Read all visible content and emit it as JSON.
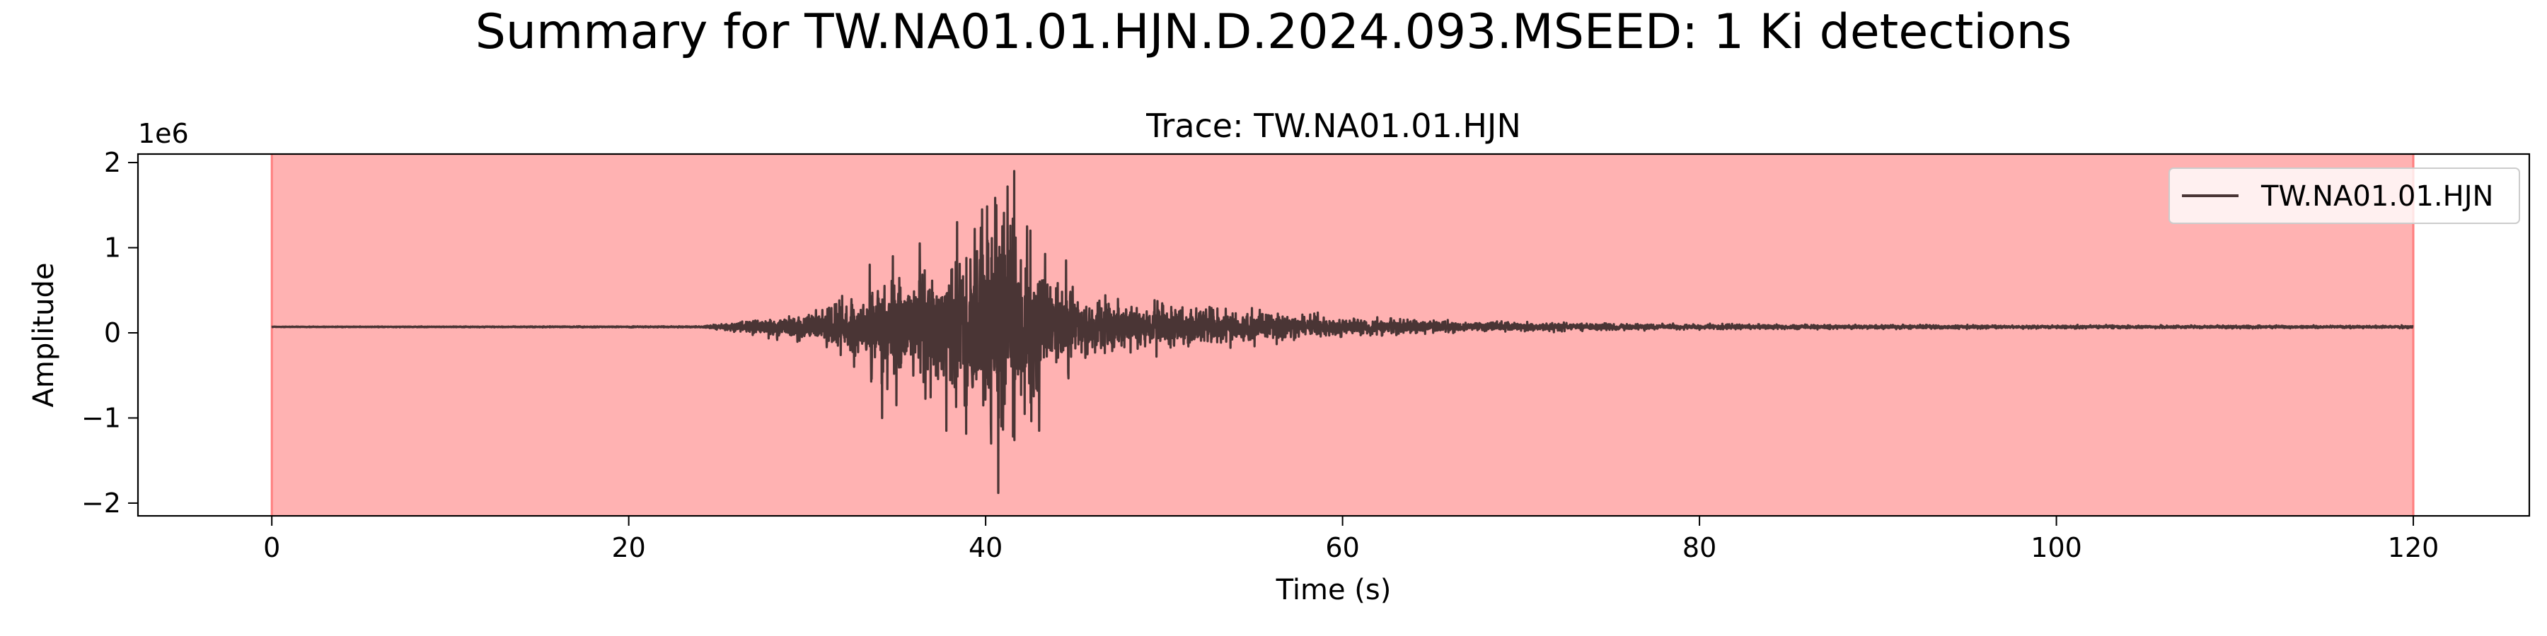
{
  "chart_data": {
    "type": "line",
    "title": "Summary for TW.NA01.01.HJN.D.2024.093.MSEED: 1 Ki detections",
    "subtitle": "Trace: TW.NA01.01.HJN",
    "xlabel": "Time (s)",
    "ylabel": "Amplitude",
    "y_offset_text": "1e6",
    "xlim": [
      -7.5,
      126.5
    ],
    "ylim": [
      -2.15,
      2.1
    ],
    "x_ticks": [
      0,
      20,
      40,
      60,
      80,
      100,
      120
    ],
    "x_tick_labels": [
      "0",
      "20",
      "40",
      "60",
      "80",
      "100",
      "120"
    ],
    "y_ticks": [
      2,
      1,
      0,
      -1,
      -2
    ],
    "y_tick_labels": [
      "2",
      "1",
      "0",
      "−1",
      "−2"
    ],
    "grid": false,
    "legend_placement": "top-right",
    "detection_span": {
      "start": 0,
      "end": 120,
      "color": "#ff7f7f"
    },
    "series": [
      {
        "name": "TW.NA01.01.HJN",
        "color": "#4a3535",
        "baseline": 0.07,
        "envelope": [
          [
            0,
            0.005
          ],
          [
            24,
            0.01
          ],
          [
            25,
            0.04
          ],
          [
            27,
            0.12
          ],
          [
            29,
            0.2
          ],
          [
            31,
            0.3
          ],
          [
            33,
            0.55
          ],
          [
            34,
            0.8
          ],
          [
            36,
            0.9
          ],
          [
            38,
            1.0
          ],
          [
            39,
            1.4
          ],
          [
            40,
            1.6
          ],
          [
            41,
            1.9
          ],
          [
            42,
            1.7
          ],
          [
            43,
            1.2
          ],
          [
            44,
            0.8
          ],
          [
            46,
            0.5
          ],
          [
            48,
            0.4
          ],
          [
            50,
            0.35
          ],
          [
            53,
            0.28
          ],
          [
            56,
            0.22
          ],
          [
            60,
            0.15
          ],
          [
            65,
            0.1
          ],
          [
            70,
            0.07
          ],
          [
            80,
            0.04
          ],
          [
            90,
            0.03
          ],
          [
            100,
            0.025
          ],
          [
            120,
            0.02
          ]
        ],
        "peaks": [
          [
            41.6,
            1.9
          ],
          [
            40.7,
            -1.88
          ],
          [
            40.6,
            1.5
          ],
          [
            40.3,
            -1.3
          ],
          [
            39.8,
            1.45
          ],
          [
            38.4,
            1.3
          ],
          [
            37.8,
            -1.15
          ],
          [
            34.2,
            -1.0
          ],
          [
            33.5,
            0.8
          ],
          [
            42.5,
            1.2
          ],
          [
            43.0,
            -1.15
          ],
          [
            36.3,
            1.05
          ],
          [
            35.0,
            -0.85
          ],
          [
            44.5,
            0.85
          ],
          [
            34.8,
            0.9
          ]
        ]
      }
    ]
  }
}
